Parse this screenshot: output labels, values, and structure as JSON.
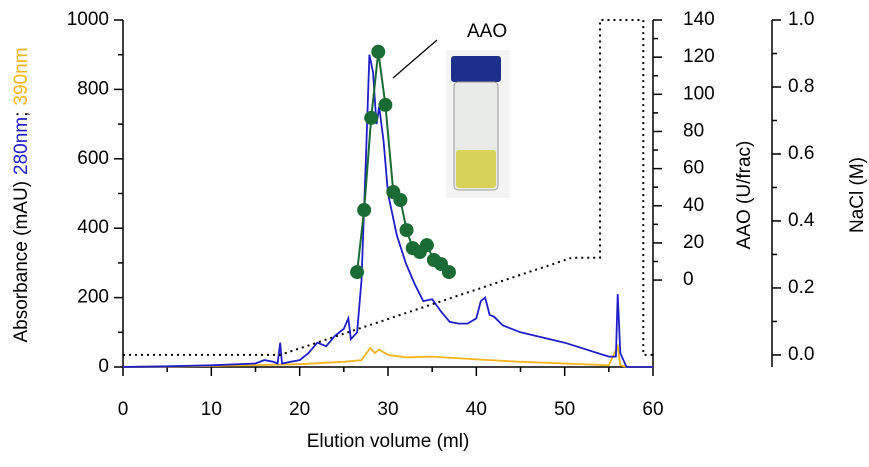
{
  "chart_data": {
    "type": "line",
    "x_label": "Elution volume (ml)",
    "y_label_parts": [
      {
        "text": "Absorbance (mAU)",
        "color": "#000000"
      },
      {
        "text": "280nm",
        "color": "#1f1fc8"
      },
      {
        "text": ";",
        "color": "#000000"
      },
      {
        "text": "390nm",
        "color": "#f2b51d"
      }
    ],
    "y2_label": "AAO (U/frac)",
    "y2_label_color": "#1b6b35",
    "y3_label": "NaCl (M)",
    "annotation": "AAO",
    "xlim": [
      0,
      60
    ],
    "xticks": [
      0,
      10,
      20,
      30,
      40,
      50,
      60
    ],
    "xminor_ticks": [
      5,
      15,
      25,
      35,
      45,
      55
    ],
    "ylim": [
      0,
      1000
    ],
    "yticks": [
      0,
      200,
      400,
      600,
      800,
      1000
    ],
    "yminor_ticks": [
      100,
      300,
      500,
      700,
      900
    ],
    "y2lim": [
      -46.8,
      140
    ],
    "y2ticks": [
      0,
      20,
      40,
      60,
      80,
      100,
      120,
      140
    ],
    "y2minor_ticks": [
      10,
      30,
      50,
      70,
      90,
      110,
      130
    ],
    "y3lim": [
      -0.036,
      1.0
    ],
    "y3ticks": [
      {
        "value": 0.0,
        "label": "0.0"
      },
      0.2,
      0.4,
      0.6,
      0.8,
      {
        "value": 1.0,
        "label": "1.0"
      }
    ],
    "y3minor_ticks": [
      0.1,
      0.3,
      0.5,
      0.7,
      0.9
    ],
    "series": [
      {
        "name": "390nm",
        "color": "#f2b51d",
        "axis": "y",
        "style": "line",
        "x": [
          0,
          10,
          20,
          25,
          27,
          28,
          28.5,
          29,
          30,
          32,
          35,
          40,
          45,
          50,
          55,
          56,
          56.3,
          57,
          60
        ],
        "values": [
          0,
          3,
          8,
          15,
          20,
          55,
          40,
          50,
          35,
          28,
          30,
          22,
          15,
          10,
          5,
          60,
          5,
          0,
          0
        ]
      },
      {
        "name": "280nm",
        "color": "#1f1fc8",
        "axis": "y",
        "style": "line",
        "x": [
          0,
          5,
          10,
          15,
          16,
          17,
          17.5,
          17.8,
          18,
          19,
          20,
          21,
          22,
          23,
          24,
          25,
          25.5,
          25.8,
          26.5,
          27,
          27.5,
          27.9,
          28.3,
          28.7,
          29,
          29.5,
          30,
          31,
          32,
          33,
          34,
          35,
          36,
          37,
          38,
          39,
          40,
          40.5,
          41,
          41.5,
          42,
          43,
          45,
          50,
          55,
          55.8,
          56,
          56.3,
          57,
          60
        ],
        "values": [
          0,
          2,
          5,
          10,
          20,
          15,
          10,
          70,
          10,
          15,
          20,
          40,
          70,
          60,
          90,
          110,
          140,
          80,
          100,
          250,
          600,
          900,
          850,
          700,
          750,
          650,
          500,
          380,
          300,
          240,
          190,
          195,
          160,
          130,
          125,
          125,
          140,
          190,
          200,
          150,
          145,
          120,
          100,
          70,
          30,
          30,
          210,
          40,
          0,
          0
        ]
      },
      {
        "name": "NaCl",
        "color": "#000000",
        "axis": "y3",
        "style": "dotted",
        "x": [
          0,
          17.8,
          50.8,
          54.0,
          54.0,
          58.9,
          58.9,
          60
        ],
        "values": [
          0.0,
          0.0,
          0.29,
          0.29,
          1.0,
          1.0,
          0.0,
          0.0
        ]
      },
      {
        "name": "AAO",
        "color": "#1b6b35",
        "axis": "y2",
        "style": "markers",
        "x": [
          26.5,
          27.3,
          28.1,
          28.9,
          29.7,
          30.6,
          31.4,
          32.1,
          32.8,
          33.6,
          34.4,
          35.2,
          36.0,
          36.9
        ],
        "values": [
          4.3,
          37.7,
          87.3,
          122.9,
          94.3,
          47.4,
          43.1,
          26.9,
          17.2,
          15.1,
          18.8,
          10.8,
          8.6,
          4.3
        ]
      }
    ]
  }
}
